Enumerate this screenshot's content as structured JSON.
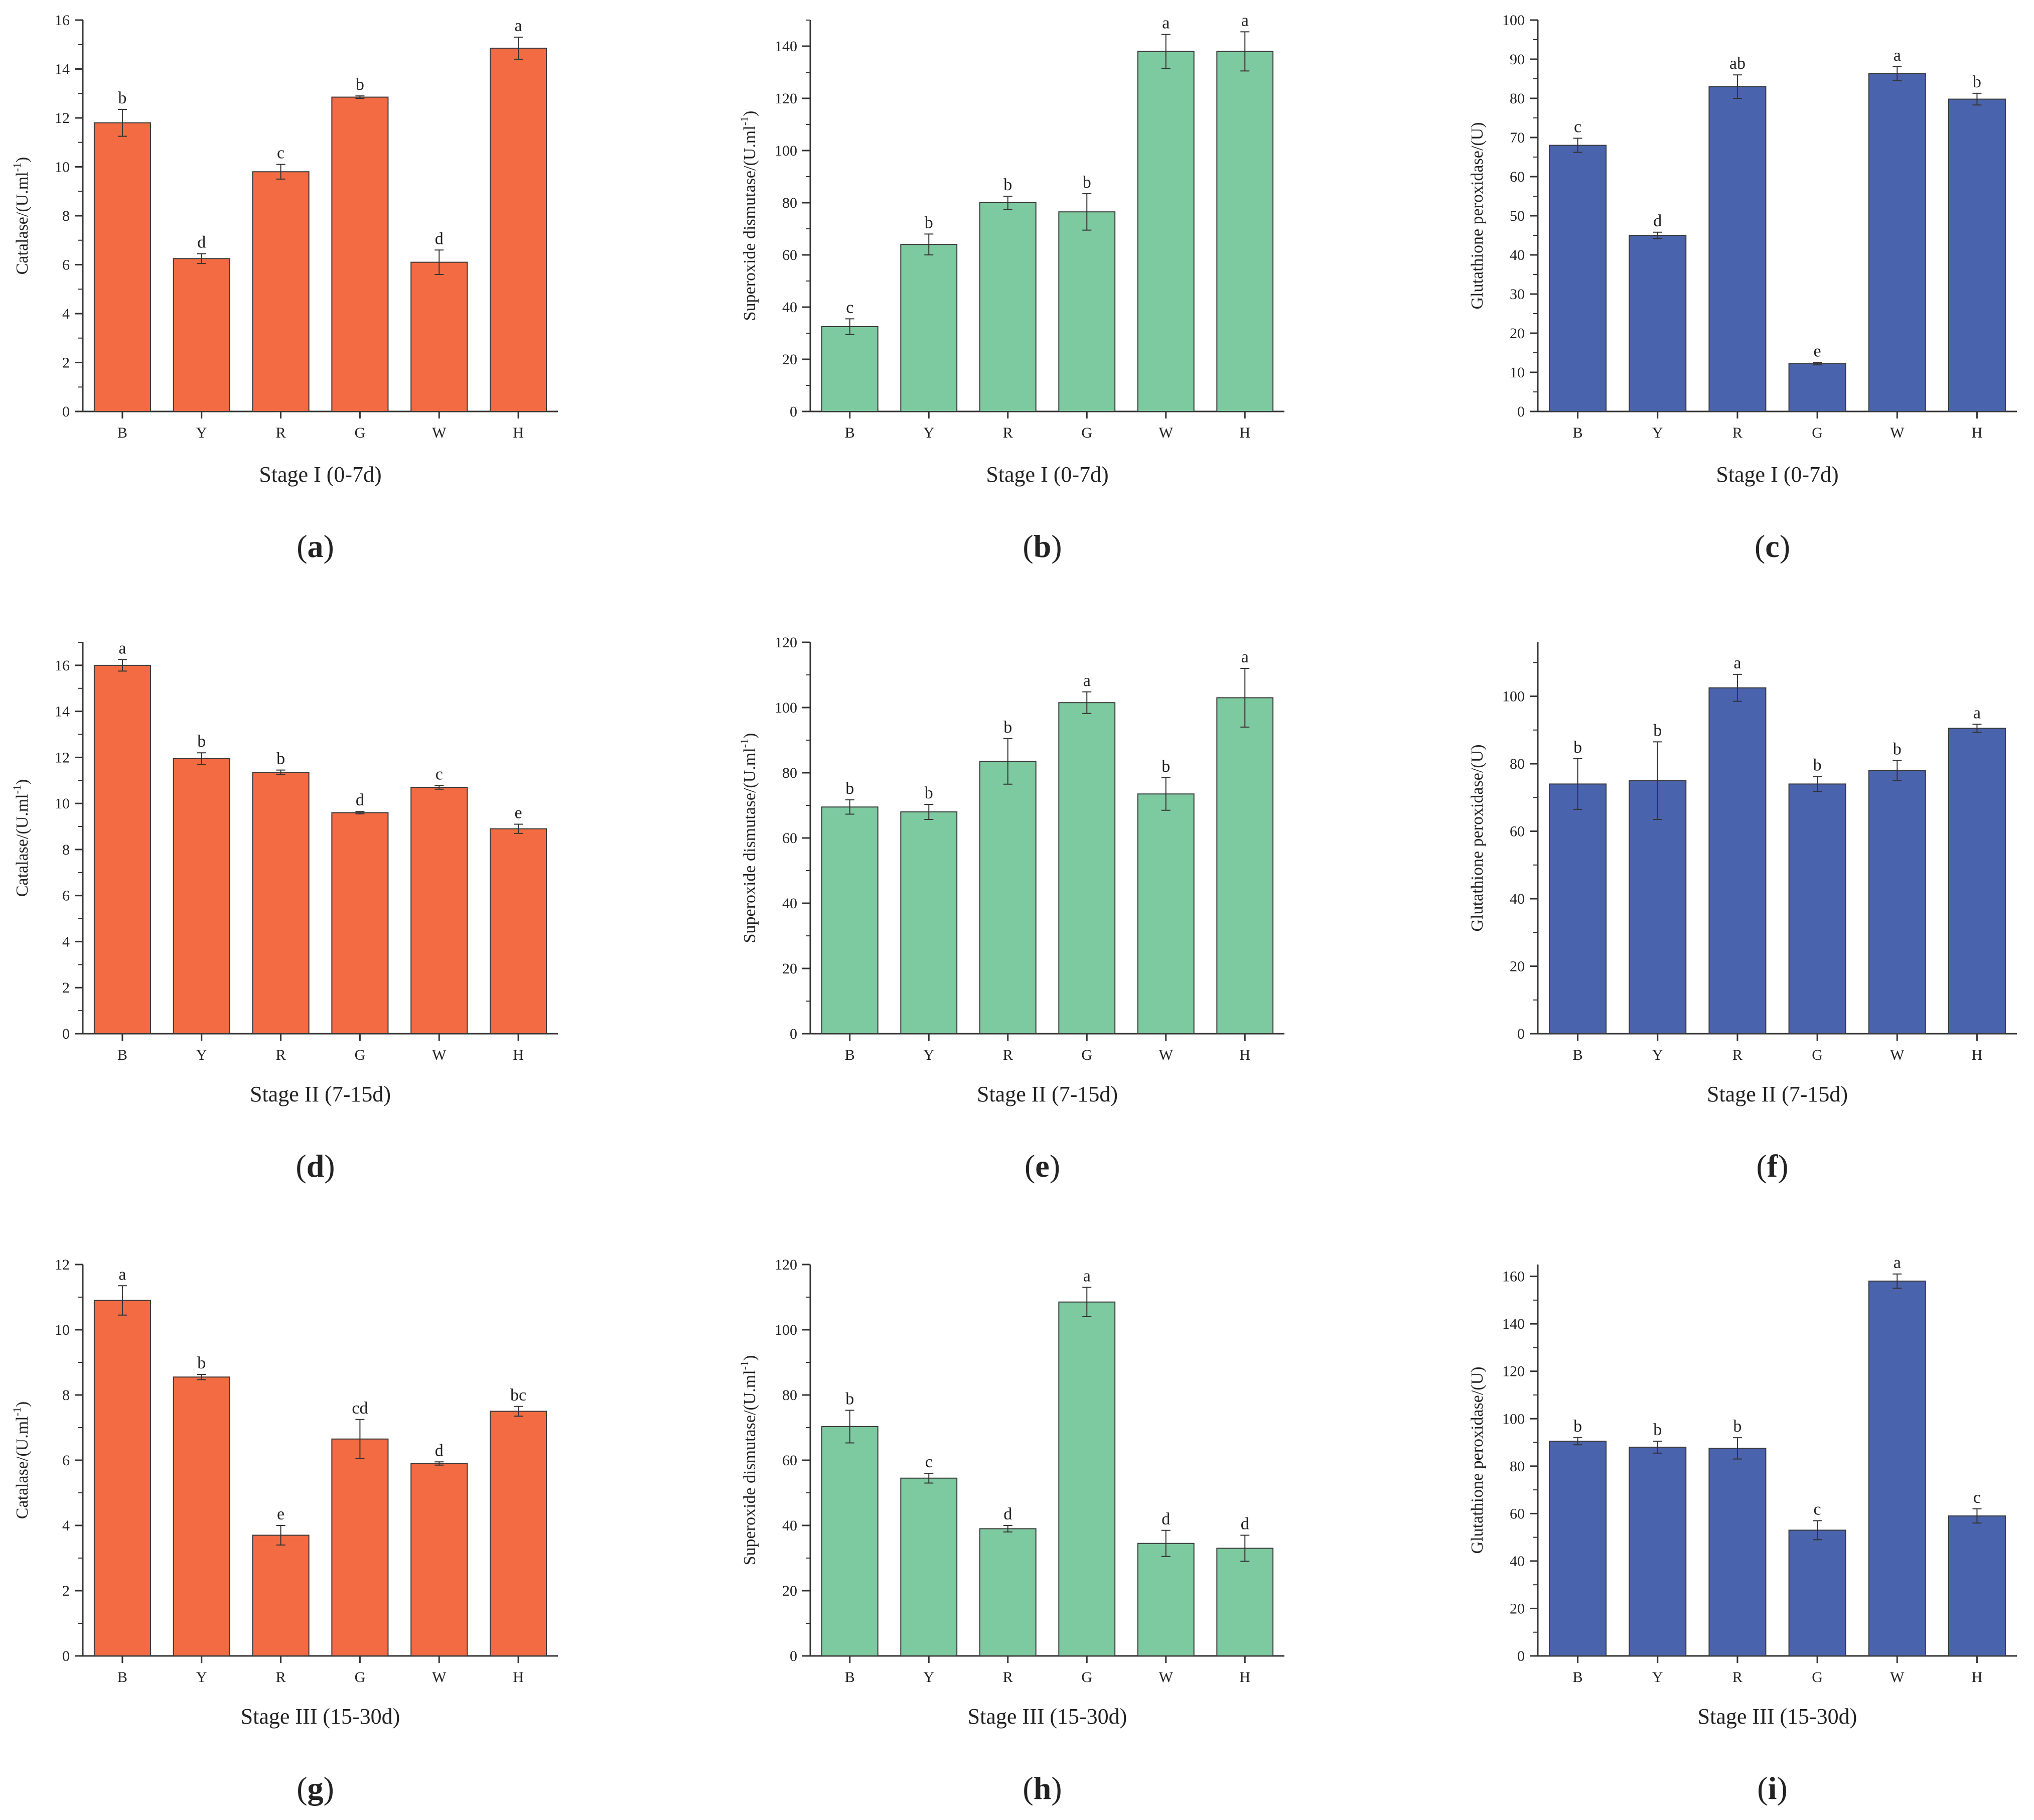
{
  "figure": {
    "panel_count": 9
  },
  "colors": {
    "catalase": "#f26b43",
    "sod": "#7ecaa0",
    "gpx": "#4a63ad"
  },
  "chart_data": [
    {
      "id": "a",
      "panel_label": "a",
      "type": "bar",
      "color_key": "catalase",
      "ylabel": "Catalase/(U.ml-1)",
      "ylabel_base": "Catalase/(U.ml",
      "ylabel_sup": "-1",
      "ylabel_end": ")",
      "xlabel": "Stage I (0-7d)",
      "categories": [
        "B",
        "Y",
        "R",
        "G",
        "W",
        "H"
      ],
      "values": [
        11.8,
        6.25,
        9.8,
        12.85,
        6.1,
        14.85
      ],
      "errors": [
        0.55,
        0.2,
        0.3,
        0.05,
        0.5,
        0.45
      ],
      "letters": [
        "b",
        "d",
        "c",
        "b",
        "d",
        "a"
      ],
      "ylim": [
        0,
        16
      ],
      "yticks": [
        0,
        2,
        4,
        6,
        8,
        10,
        12,
        14,
        16
      ]
    },
    {
      "id": "b",
      "panel_label": "b",
      "type": "bar",
      "color_key": "sod",
      "ylabel": "Superoxide dismutase/(U.ml-1)",
      "ylabel_base": "Superoxide dismutase/(U.ml",
      "ylabel_sup": "-1",
      "ylabel_end": ")",
      "xlabel": "Stage I (0-7d)",
      "categories": [
        "B",
        "Y",
        "R",
        "G",
        "W",
        "H"
      ],
      "values": [
        32.5,
        64,
        80,
        76.5,
        138,
        138
      ],
      "errors": [
        3,
        4,
        2.5,
        7,
        6.5,
        7.5
      ],
      "letters": [
        "c",
        "b",
        "b",
        "b",
        "a",
        "a"
      ],
      "ylim": [
        0,
        150
      ],
      "yticks": [
        0,
        20,
        40,
        60,
        80,
        100,
        120,
        140
      ]
    },
    {
      "id": "c",
      "panel_label": "c",
      "type": "bar",
      "color_key": "gpx",
      "ylabel": "Glutathione peroxidase/(U)",
      "ylabel_base": "Glutathione peroxidase/(U)",
      "ylabel_sup": "",
      "ylabel_end": "",
      "xlabel": "Stage I (0-7d)",
      "categories": [
        "B",
        "Y",
        "R",
        "G",
        "W",
        "H"
      ],
      "values": [
        68,
        45,
        83,
        12.2,
        86.3,
        79.8
      ],
      "errors": [
        1.8,
        0.8,
        3,
        0.3,
        1.8,
        1.5
      ],
      "letters": [
        "c",
        "d",
        "ab",
        "e",
        "a",
        "b"
      ],
      "ylim": [
        0,
        100
      ],
      "yticks": [
        0,
        10,
        20,
        30,
        40,
        50,
        60,
        70,
        80,
        90,
        100
      ]
    },
    {
      "id": "d",
      "panel_label": "d",
      "type": "bar",
      "color_key": "catalase",
      "ylabel": "Catalase/(U.ml-1)",
      "ylabel_base": "Catalase/(U.ml",
      "ylabel_sup": "-1",
      "ylabel_end": ")",
      "xlabel": "Stage II (7-15d)",
      "categories": [
        "B",
        "Y",
        "R",
        "G",
        "W",
        "H"
      ],
      "values": [
        16,
        11.95,
        11.35,
        9.6,
        10.7,
        8.9
      ],
      "errors": [
        0.25,
        0.25,
        0.1,
        0.05,
        0.08,
        0.2
      ],
      "letters": [
        "a",
        "b",
        "b",
        "d",
        "c",
        "e"
      ],
      "ylim": [
        0,
        17
      ],
      "yticks": [
        0,
        2,
        4,
        6,
        8,
        10,
        12,
        14,
        16
      ]
    },
    {
      "id": "e",
      "panel_label": "e",
      "type": "bar",
      "color_key": "sod",
      "ylabel": "Superoxide dismutase/(U.ml-1)",
      "ylabel_base": "Superoxide dismutase/(U.ml",
      "ylabel_sup": "-1",
      "ylabel_end": ")",
      "xlabel": "Stage II (7-15d)",
      "categories": [
        "B",
        "Y",
        "R",
        "G",
        "W",
        "H"
      ],
      "values": [
        69.5,
        68,
        83.5,
        101.5,
        73.5,
        103
      ],
      "errors": [
        2.2,
        2.3,
        7,
        3.3,
        5,
        9
      ],
      "letters": [
        "b",
        "b",
        "b",
        "a",
        "b",
        "a"
      ],
      "ylim": [
        0,
        120
      ],
      "yticks": [
        0,
        20,
        40,
        60,
        80,
        100,
        120
      ]
    },
    {
      "id": "f",
      "panel_label": "f",
      "type": "bar",
      "color_key": "gpx",
      "ylabel": "Glutathione peroxidase/(U)",
      "ylabel_base": "Glutathione peroxidase/(U)",
      "ylabel_sup": "",
      "ylabel_end": "",
      "xlabel": "Stage II (7-15d)",
      "categories": [
        "B",
        "Y",
        "R",
        "G",
        "W",
        "H"
      ],
      "values": [
        74,
        75,
        102.5,
        74,
        78,
        90.5
      ],
      "errors": [
        7.5,
        11.5,
        4,
        2.2,
        3,
        1.2
      ],
      "letters": [
        "b",
        "b",
        "a",
        "b",
        "b",
        "a"
      ],
      "ylim": [
        0,
        116
      ],
      "yticks": [
        0,
        20,
        40,
        60,
        80,
        100
      ]
    },
    {
      "id": "g",
      "panel_label": "g",
      "type": "bar",
      "color_key": "catalase",
      "ylabel": "Catalase/(U.ml-1)",
      "ylabel_base": "Catalase/(U.ml",
      "ylabel_sup": "-1",
      "ylabel_end": ")",
      "xlabel": "Stage III (15-30d)",
      "categories": [
        "B",
        "Y",
        "R",
        "G",
        "W",
        "H"
      ],
      "values": [
        10.9,
        8.55,
        3.7,
        6.65,
        5.9,
        7.5
      ],
      "errors": [
        0.45,
        0.08,
        0.3,
        0.6,
        0.05,
        0.15
      ],
      "letters": [
        "a",
        "b",
        "e",
        "cd",
        "d",
        "bc"
      ],
      "ylim": [
        0,
        12
      ],
      "yticks": [
        0,
        2,
        4,
        6,
        8,
        10,
        12
      ]
    },
    {
      "id": "h",
      "panel_label": "h",
      "type": "bar",
      "color_key": "sod",
      "ylabel": "Superoxide dismutase/(U.ml-1)",
      "ylabel_base": "Superoxide dismutase/(U.ml",
      "ylabel_sup": "-1",
      "ylabel_end": ")",
      "xlabel": "Stage III (15-30d)",
      "categories": [
        "B",
        "Y",
        "R",
        "G",
        "W",
        "H"
      ],
      "values": [
        70.3,
        54.5,
        39,
        108.5,
        34.5,
        33
      ],
      "errors": [
        5,
        1.5,
        1,
        4.5,
        4,
        4
      ],
      "letters": [
        "b",
        "c",
        "d",
        "a",
        "d",
        "d"
      ],
      "ylim": [
        0,
        120
      ],
      "yticks": [
        0,
        20,
        40,
        60,
        80,
        100,
        120
      ]
    },
    {
      "id": "i",
      "panel_label": "i",
      "type": "bar",
      "color_key": "gpx",
      "ylabel": "Glutathione peroxidase/(U)",
      "ylabel_base": "Glutathione peroxidase/(U)",
      "ylabel_sup": "",
      "ylabel_end": "",
      "xlabel": "Stage III (15-30d)",
      "categories": [
        "B",
        "Y",
        "R",
        "G",
        "W",
        "H"
      ],
      "values": [
        90.5,
        88,
        87.5,
        53,
        158,
        59
      ],
      "errors": [
        1.5,
        2.5,
        4.5,
        4,
        3,
        3
      ],
      "letters": [
        "b",
        "b",
        "b",
        "c",
        "a",
        "c"
      ],
      "ylim": [
        0,
        165
      ],
      "yticks": [
        0,
        20,
        40,
        60,
        80,
        100,
        120,
        140,
        160
      ]
    }
  ]
}
